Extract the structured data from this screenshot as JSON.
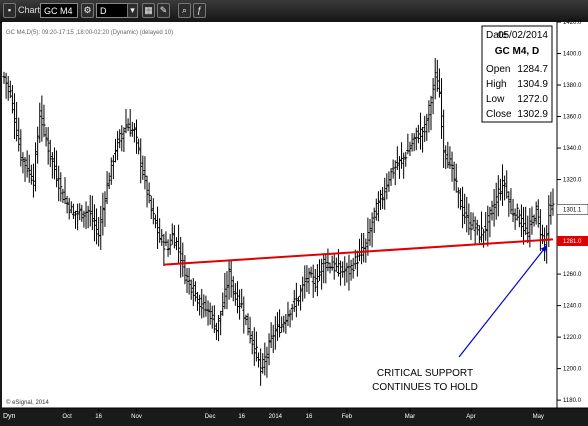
{
  "window": {
    "title": "Chart",
    "symbol": "GC M4",
    "interval": "D",
    "mode_label": "Dyn"
  },
  "info_header": "GC M4,D(5): 09:20-17:15 ,18:00-02:20 (Dynamic) (delayed 10)",
  "info_box": {
    "date_label": "Date",
    "date": "05/02/2014",
    "title": "GC M4, D",
    "rows": [
      {
        "label": "Open",
        "value": "1284.7"
      },
      {
        "label": "High",
        "value": "1304.9"
      },
      {
        "label": "Low",
        "value": "1272.0"
      },
      {
        "label": "Close",
        "value": "1302.9"
      }
    ]
  },
  "watermark": "© eSignal, 2014",
  "colors": {
    "background": "#ffffff",
    "bars": "#000000",
    "trendline": "#e00000",
    "arrow": "#0000cc"
  },
  "chart_data": {
    "type": "ohlc",
    "title": "GC M4, D",
    "ylim": [
      1175,
      1420
    ],
    "y_ticks": [
      1180,
      1200,
      1220,
      1240,
      1260,
      1280,
      1300,
      1320,
      1340,
      1360,
      1380,
      1400,
      1420
    ],
    "y_tick_labels": [
      "1180.0",
      "1200.0",
      "1220.0",
      "1240.0",
      "1260.0",
      "1280.0",
      "1300.0",
      "1320.0",
      "1340.0",
      "1360.0",
      "1380.0",
      "1400.0",
      "1420.0"
    ],
    "x_tick_labels": [
      {
        "label": "Oct",
        "bar": 30
      },
      {
        "label": "16",
        "bar": 45
      },
      {
        "label": "Nov",
        "bar": 63
      },
      {
        "label": "Dec",
        "bar": 98
      },
      {
        "label": "16",
        "bar": 113
      },
      {
        "label": "2014",
        "bar": 129
      },
      {
        "label": "16",
        "bar": 145
      },
      {
        "label": "Feb",
        "bar": 163
      },
      {
        "label": "Mar",
        "bar": 193
      },
      {
        "label": "Apr",
        "bar": 222
      },
      {
        "label": "May",
        "bar": 254
      }
    ],
    "last_value_label": "1301.1",
    "support_label": "1281.0",
    "trendline": {
      "from_bar": 76,
      "from_value": 1266,
      "to_bar": 261,
      "to_value": 1282
    },
    "anchors": [
      {
        "bar": 0,
        "value": 1385
      },
      {
        "bar": 3,
        "value": 1375
      },
      {
        "bar": 8,
        "value": 1335
      },
      {
        "bar": 14,
        "value": 1320
      },
      {
        "bar": 17,
        "value": 1362
      },
      {
        "bar": 22,
        "value": 1335
      },
      {
        "bar": 28,
        "value": 1310
      },
      {
        "bar": 33,
        "value": 1298
      },
      {
        "bar": 40,
        "value": 1300
      },
      {
        "bar": 45,
        "value": 1285
      },
      {
        "bar": 48,
        "value": 1310
      },
      {
        "bar": 53,
        "value": 1340
      },
      {
        "bar": 58,
        "value": 1355
      },
      {
        "bar": 62,
        "value": 1350
      },
      {
        "bar": 66,
        "value": 1325
      },
      {
        "bar": 70,
        "value": 1300
      },
      {
        "bar": 74,
        "value": 1283
      },
      {
        "bar": 78,
        "value": 1276
      },
      {
        "bar": 80,
        "value": 1285
      },
      {
        "bar": 83,
        "value": 1277
      },
      {
        "bar": 86,
        "value": 1260
      },
      {
        "bar": 90,
        "value": 1250
      },
      {
        "bar": 94,
        "value": 1240
      },
      {
        "bar": 98,
        "value": 1235
      },
      {
        "bar": 101,
        "value": 1225
      },
      {
        "bar": 104,
        "value": 1240
      },
      {
        "bar": 107,
        "value": 1260
      },
      {
        "bar": 110,
        "value": 1245
      },
      {
        "bar": 113,
        "value": 1240
      },
      {
        "bar": 116,
        "value": 1225
      },
      {
        "bar": 120,
        "value": 1210
      },
      {
        "bar": 122,
        "value": 1198
      },
      {
        "bar": 125,
        "value": 1210
      },
      {
        "bar": 128,
        "value": 1222
      },
      {
        "bar": 132,
        "value": 1228
      },
      {
        "bar": 136,
        "value": 1238
      },
      {
        "bar": 140,
        "value": 1245
      },
      {
        "bar": 144,
        "value": 1258
      },
      {
        "bar": 148,
        "value": 1255
      },
      {
        "bar": 152,
        "value": 1268
      },
      {
        "bar": 156,
        "value": 1265
      },
      {
        "bar": 160,
        "value": 1262
      },
      {
        "bar": 164,
        "value": 1262
      },
      {
        "bar": 168,
        "value": 1270
      },
      {
        "bar": 172,
        "value": 1278
      },
      {
        "bar": 176,
        "value": 1298
      },
      {
        "bar": 180,
        "value": 1310
      },
      {
        "bar": 183,
        "value": 1322
      },
      {
        "bar": 186,
        "value": 1328
      },
      {
        "bar": 189,
        "value": 1332
      },
      {
        "bar": 192,
        "value": 1338
      },
      {
        "bar": 196,
        "value": 1348
      },
      {
        "bar": 200,
        "value": 1352
      },
      {
        "bar": 203,
        "value": 1370
      },
      {
        "bar": 205,
        "value": 1385
      },
      {
        "bar": 207,
        "value": 1375
      },
      {
        "bar": 209,
        "value": 1340
      },
      {
        "bar": 212,
        "value": 1330
      },
      {
        "bar": 215,
        "value": 1315
      },
      {
        "bar": 218,
        "value": 1300
      },
      {
        "bar": 221,
        "value": 1292
      },
      {
        "bar": 224,
        "value": 1290
      },
      {
        "bar": 226,
        "value": 1285
      },
      {
        "bar": 229,
        "value": 1290
      },
      {
        "bar": 232,
        "value": 1300
      },
      {
        "bar": 235,
        "value": 1312
      },
      {
        "bar": 238,
        "value": 1318
      },
      {
        "bar": 241,
        "value": 1300
      },
      {
        "bar": 244,
        "value": 1298
      },
      {
        "bar": 247,
        "value": 1290
      },
      {
        "bar": 249,
        "value": 1285
      },
      {
        "bar": 251,
        "value": 1295
      },
      {
        "bar": 253,
        "value": 1300
      },
      {
        "bar": 255,
        "value": 1288
      },
      {
        "bar": 257,
        "value": 1278
      },
      {
        "bar": 258,
        "value": 1285
      },
      {
        "bar": 259,
        "value": 1300
      },
      {
        "bar": 261,
        "value": 1302
      }
    ],
    "bar_count": 262,
    "annotations": [
      {
        "text_lines": [
          "CRITICAL SUPPORT",
          "CONTINUES TO HOLD"
        ],
        "arrow_to_bar": 258,
        "arrow_to_value": 1278
      }
    ]
  }
}
